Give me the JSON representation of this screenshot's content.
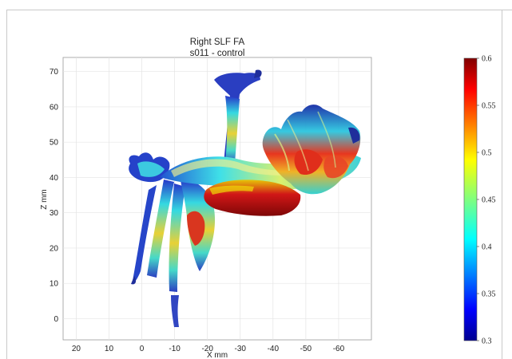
{
  "chart_data": {
    "type": "other",
    "title": "Right SLF FA",
    "subtitle": "s011 - control",
    "xlabel": "X mm",
    "ylabel": "Z mm",
    "x_ticks": [
      20,
      10,
      0,
      -10,
      -20,
      -30,
      -40,
      -50,
      -60
    ],
    "y_ticks": [
      0,
      10,
      20,
      30,
      40,
      50,
      60,
      70
    ],
    "xlim": [
      24,
      -70
    ],
    "ylim": [
      -6,
      74
    ],
    "grid": true,
    "colorbar": {
      "colormap": "jet",
      "range": [
        0.3,
        0.6
      ],
      "ticks": [
        "0.6",
        "0.55",
        "0.5",
        "0.45",
        "0.4",
        "0.35",
        "0.3"
      ]
    }
  },
  "colors": {
    "jet_low": "#00008f",
    "jet_mid": "#3fffbf",
    "jet_high": "#800000"
  }
}
